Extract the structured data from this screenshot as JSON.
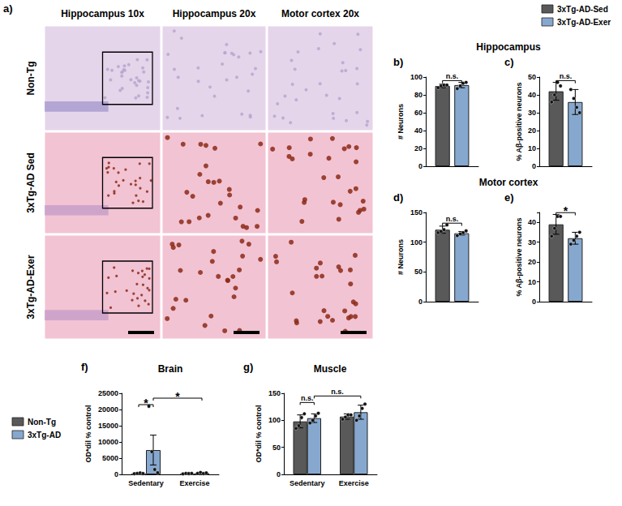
{
  "figure_panel": {
    "label": "a)",
    "columns": [
      "Hippocampus 10x",
      "Hippocampus 20x",
      "Motor cortex 20x"
    ],
    "rows": [
      "Non-Tg",
      "3xTg-AD Sed",
      "3xTg-AD-Exer"
    ]
  },
  "chart_data": [
    {
      "type": "bar",
      "panel": "b)",
      "title": "Hippocampus",
      "ylabel": "# Neurons",
      "ylim": [
        0,
        100
      ],
      "yticks": [
        0,
        20,
        40,
        60,
        80,
        100
      ],
      "grid": false,
      "tick_labels": "y",
      "legend": "upper right",
      "series": [
        {
          "name": "3xTg-AD-Sed",
          "color": "#595959",
          "values": [
            90
          ],
          "errors": [
            2
          ],
          "points": [
            [
              88,
              90,
              91,
              91
            ]
          ]
        },
        {
          "name": "3xTg-AD-Exer",
          "color": "#86a8cf",
          "values": [
            91
          ],
          "errors": [
            3
          ],
          "points": [
            [
              87,
              90,
              93,
              94
            ]
          ]
        }
      ],
      "annotations": [
        {
          "text": "n.s.",
          "between": [
            [
              0,
              0
            ],
            [
              0,
              1
            ]
          ]
        }
      ]
    },
    {
      "type": "bar",
      "panel": "c)",
      "ylabel": "% Aβ-positive neurons",
      "ylim": [
        0,
        50
      ],
      "yticks": [
        0,
        10,
        20,
        30,
        40,
        50
      ],
      "grid": false,
      "tick_labels": "y",
      "series": [
        {
          "name": "3xTg-AD-Sed",
          "color": "#595959",
          "values": [
            42
          ],
          "errors": [
            5
          ],
          "points": [
            [
              36,
              40,
              47,
              45
            ]
          ]
        },
        {
          "name": "3xTg-AD-Exer",
          "color": "#86a8cf",
          "values": [
            36
          ],
          "errors": [
            7
          ],
          "points": [
            [
              43,
              38,
              33,
              30
            ]
          ]
        }
      ],
      "annotations": [
        {
          "text": "n.s.",
          "between": [
            [
              0,
              0
            ],
            [
              0,
              1
            ]
          ]
        }
      ]
    },
    {
      "type": "bar",
      "panel": "d)",
      "title": "Motor cortex",
      "ylabel": "# Neurons",
      "ylim": [
        0,
        150
      ],
      "yticks": [
        0,
        50,
        100,
        150
      ],
      "grid": false,
      "tick_labels": "y",
      "series": [
        {
          "name": "3xTg-AD-Sed",
          "color": "#595959",
          "values": [
            121
          ],
          "errors": [
            6
          ],
          "points": [
            [
              116,
              118,
              121,
              129
            ]
          ]
        },
        {
          "name": "3xTg-AD-Exer",
          "color": "#86a8cf",
          "values": [
            115
          ],
          "errors": [
            3
          ],
          "points": [
            [
              111,
              114,
              116,
              119
            ]
          ]
        }
      ],
      "annotations": [
        {
          "text": "n.s.",
          "between": [
            [
              0,
              0
            ],
            [
              0,
              1
            ]
          ]
        }
      ]
    },
    {
      "type": "bar",
      "panel": "e)",
      "ylabel": "% Aβ-positive neurons",
      "ylim": [
        0,
        45
      ],
      "yticks": [
        0,
        10,
        20,
        30,
        40
      ],
      "grid": false,
      "tick_labels": "y",
      "series": [
        {
          "name": "3xTg-AD-Sed",
          "color": "#595959",
          "values": [
            39
          ],
          "errors": [
            5
          ],
          "points": [
            [
              33,
              37,
              43,
              43
            ]
          ]
        },
        {
          "name": "3xTg-AD-Exer",
          "color": "#86a8cf",
          "values": [
            32
          ],
          "errors": [
            3
          ],
          "points": [
            [
              29,
              31,
              33,
              35
            ]
          ]
        }
      ],
      "annotations": [
        {
          "text": "*",
          "between": [
            [
              0,
              0
            ],
            [
              0,
              1
            ]
          ]
        }
      ]
    },
    {
      "type": "bar",
      "panel": "f)",
      "title": "Brain",
      "ylabel": "OD*dil % control",
      "categories": [
        "Sedentary",
        "Exercise"
      ],
      "ylim": [
        0,
        25000
      ],
      "yticks": [
        0,
        5000,
        10000,
        15000,
        20000,
        25000
      ],
      "grid": false,
      "legend": "left",
      "series": [
        {
          "name": "Non-Tg",
          "color": "#595959",
          "values": [
            300,
            250
          ],
          "errors": [
            150,
            100
          ],
          "points": [
            [
              200,
              300,
              450,
              250
            ],
            [
              150,
              300,
              250,
              300
            ]
          ]
        },
        {
          "name": "3xTg-AD",
          "color": "#86a8cf",
          "values": [
            7500,
            400
          ],
          "errors": [
            4600,
            150
          ],
          "points": [
            [
              21000,
              7000,
              1500,
              500
            ],
            [
              300,
              600,
              250,
              450
            ]
          ]
        }
      ],
      "annotations": [
        {
          "text": "*",
          "between": [
            [
              0,
              0
            ],
            [
              0,
              1
            ]
          ]
        },
        {
          "text": "*",
          "between": [
            [
              0,
              1
            ],
            [
              1,
              1
            ]
          ]
        }
      ]
    },
    {
      "type": "bar",
      "panel": "g)",
      "title": "Muscle",
      "ylabel": "OD*dil % control",
      "categories": [
        "Sedentary",
        "Exercise"
      ],
      "ylim": [
        0,
        150
      ],
      "yticks": [
        0,
        50,
        100,
        150
      ],
      "grid": false,
      "series": [
        {
          "name": "Non-Tg",
          "color": "#595959",
          "values": [
            98,
            107
          ],
          "errors": [
            12,
            5
          ],
          "points": [
            [
              85,
              90,
              105,
              112
            ],
            [
              102,
              106,
              110,
              110
            ]
          ]
        },
        {
          "name": "3xTg-AD",
          "color": "#86a8cf",
          "values": [
            104,
            115
          ],
          "errors": [
            8,
            13
          ],
          "points": [
            [
              95,
              100,
              108,
              113
            ],
            [
              100,
              108,
              122,
              130
            ]
          ]
        }
      ],
      "annotations": [
        {
          "text": "n.s.",
          "between": [
            [
              0,
              0
            ],
            [
              0,
              1
            ]
          ]
        },
        {
          "text": "n.s.",
          "between": [
            [
              0,
              1
            ],
            [
              1,
              1
            ]
          ]
        }
      ]
    }
  ]
}
